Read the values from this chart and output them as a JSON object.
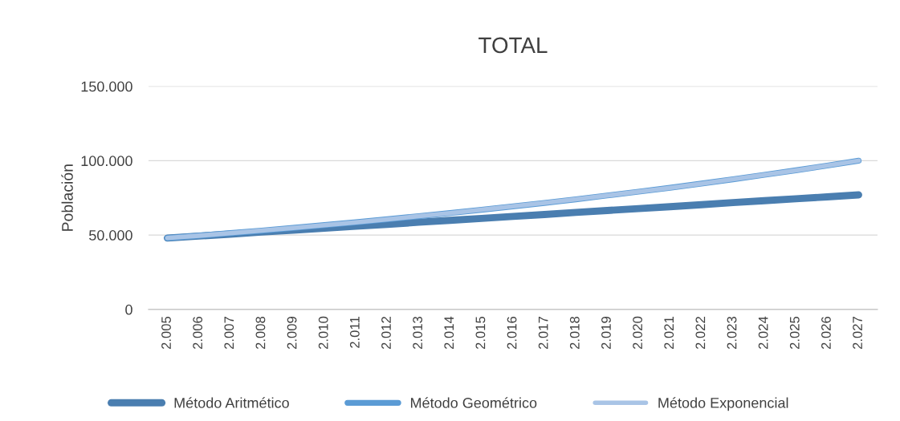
{
  "chart_data": {
    "type": "line",
    "title": "TOTAL",
    "ylabel": "Población",
    "categories": [
      "2.005",
      "2.006",
      "2.007",
      "2.008",
      "2.009",
      "2.010",
      "2.011",
      "2.012",
      "2.013",
      "2.014",
      "2.015",
      "2.016",
      "2.017",
      "2.018",
      "2.019",
      "2.020",
      "2.021",
      "2.022",
      "2.023",
      "2.024",
      "2.025",
      "2.026",
      "2.027"
    ],
    "series": [
      {
        "name": "Método Aritmético",
        "color": "#4a7eb0",
        "values": [
          48000,
          49300,
          50600,
          52000,
          53300,
          54600,
          55900,
          57200,
          58600,
          59900,
          61200,
          62500,
          63800,
          65200,
          66500,
          67800,
          69100,
          70400,
          71800,
          73100,
          74400,
          75700,
          77000
        ]
      },
      {
        "name": "Método Geométrico",
        "color": "#5b9bd5",
        "values": [
          48000,
          49600,
          51300,
          53000,
          54800,
          56700,
          58600,
          60600,
          62700,
          64800,
          67000,
          69300,
          71600,
          74000,
          76600,
          79200,
          81800,
          84600,
          87500,
          90500,
          93500,
          96700,
          100000
        ]
      },
      {
        "name": "Método Exponencial",
        "color": "#a9c4e6",
        "values": [
          48000,
          49600,
          51300,
          53000,
          54800,
          56700,
          58600,
          60600,
          62700,
          64800,
          67000,
          69300,
          71600,
          74000,
          76600,
          79200,
          81800,
          84600,
          87500,
          90500,
          93500,
          96700,
          100000
        ]
      }
    ],
    "ylim": [
      0,
      150000
    ],
    "yticks": [
      {
        "value": 0,
        "label": "0"
      },
      {
        "value": 50000,
        "label": "50.000"
      },
      {
        "value": 100000,
        "label": "100.000"
      },
      {
        "value": 150000,
        "label": "150.000"
      }
    ],
    "grid": "y",
    "legend": "bottom",
    "marker": "none",
    "line_style": "solid"
  }
}
